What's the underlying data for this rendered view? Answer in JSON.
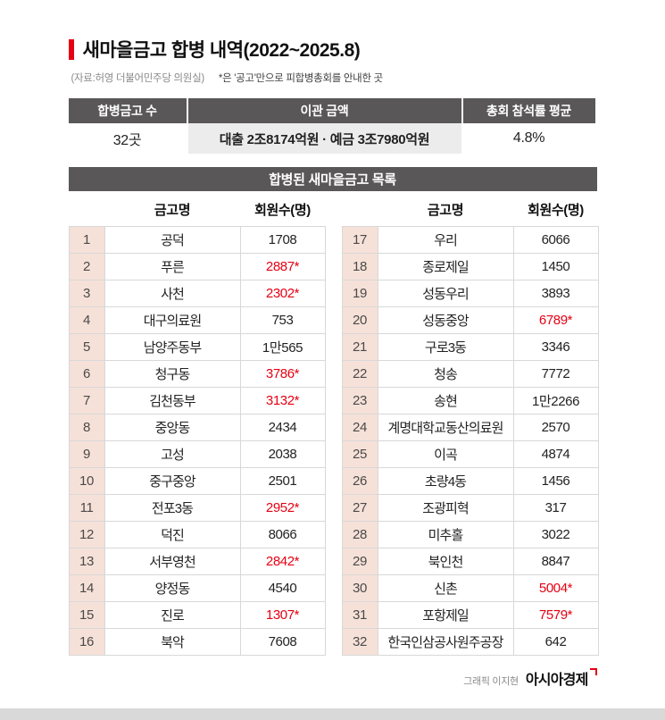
{
  "header": {
    "title": "새마을금고 합병 내역(2022~2025.8)",
    "source": "(자료:허영 더불어민주당 의원실)",
    "note": "*은 '공고'만으로 피합병총회를 안내한 곳"
  },
  "summary": {
    "headers": [
      "합병금고 수",
      "이관 금액",
      "총회 참석률 평균"
    ],
    "values": [
      "32곳",
      "대출 2조8174억원 · 예금 3조7980억원",
      "4.8%"
    ]
  },
  "chart_data": {
    "type": "table",
    "title": "합병된 새마을금고 목록",
    "columns": [
      "금고명",
      "회원수(명)"
    ],
    "star_meaning": "공고만으로 피합병총회를 안내한 곳",
    "left_rows": [
      {
        "no": "1",
        "name": "공덕",
        "members": "1708"
      },
      {
        "no": "2",
        "name": "푸른",
        "members": "2887*"
      },
      {
        "no": "3",
        "name": "사천",
        "members": "2302*"
      },
      {
        "no": "4",
        "name": "대구의료원",
        "members": "753"
      },
      {
        "no": "5",
        "name": "남양주동부",
        "members": "1만565"
      },
      {
        "no": "6",
        "name": "청구동",
        "members": "3786*"
      },
      {
        "no": "7",
        "name": "김천동부",
        "members": "3132*"
      },
      {
        "no": "8",
        "name": "중앙동",
        "members": "2434"
      },
      {
        "no": "9",
        "name": "고성",
        "members": "2038"
      },
      {
        "no": "10",
        "name": "중구중앙",
        "members": "2501"
      },
      {
        "no": "11",
        "name": "전포3동",
        "members": "2952*"
      },
      {
        "no": "12",
        "name": "덕진",
        "members": "8066"
      },
      {
        "no": "13",
        "name": "서부영천",
        "members": "2842*"
      },
      {
        "no": "14",
        "name": "양정동",
        "members": "4540"
      },
      {
        "no": "15",
        "name": "진로",
        "members": "1307*"
      },
      {
        "no": "16",
        "name": "북악",
        "members": "7608"
      }
    ],
    "right_rows": [
      {
        "no": "17",
        "name": "우리",
        "members": "6066"
      },
      {
        "no": "18",
        "name": "종로제일",
        "members": "1450"
      },
      {
        "no": "19",
        "name": "성동우리",
        "members": "3893"
      },
      {
        "no": "20",
        "name": "성동중앙",
        "members": "6789*"
      },
      {
        "no": "21",
        "name": "구로3동",
        "members": "3346"
      },
      {
        "no": "22",
        "name": "청송",
        "members": "7772"
      },
      {
        "no": "23",
        "name": "송현",
        "members": "1만2266"
      },
      {
        "no": "24",
        "name": "계명대학교동산의료원",
        "members": "2570"
      },
      {
        "no": "25",
        "name": "이곡",
        "members": "4874"
      },
      {
        "no": "26",
        "name": "초량4동",
        "members": "1456"
      },
      {
        "no": "27",
        "name": "조광피혁",
        "members": "317"
      },
      {
        "no": "28",
        "name": "미추홀",
        "members": "3022"
      },
      {
        "no": "29",
        "name": "북인천",
        "members": "8847"
      },
      {
        "no": "30",
        "name": "신촌",
        "members": "5004*"
      },
      {
        "no": "31",
        "name": "포항제일",
        "members": "7579*"
      },
      {
        "no": "32",
        "name": "한국인삼공사원주공장",
        "members": "642"
      }
    ]
  },
  "footer": {
    "credit": "그래픽 이지현",
    "brand": "아시아경제"
  },
  "colors": {
    "accent_red": "#e60013",
    "header_gray": "#595757",
    "number_cell_bg": "#f6e1d8",
    "mid_cell_bg": "#ececec"
  }
}
